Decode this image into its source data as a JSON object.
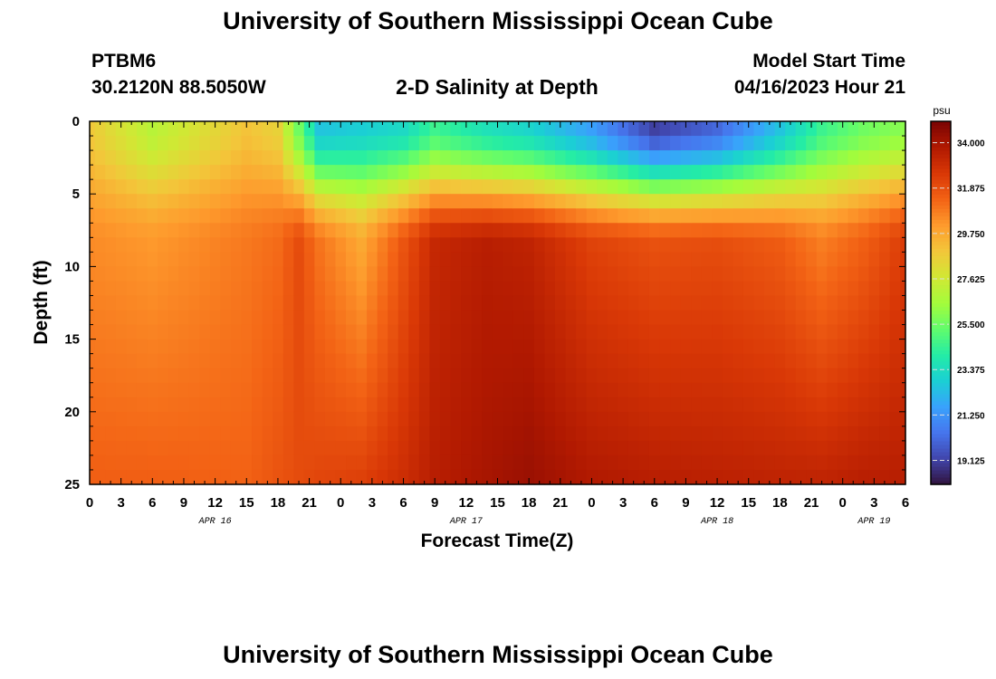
{
  "header": {
    "title": "University of Southern Mississippi Ocean Cube",
    "station_id": "PTBM6",
    "station_coords": "30.2120N  88.5050W",
    "model_start_label": "Model Start Time",
    "model_start_value": "04/16/2023 Hour 21"
  },
  "footer": {
    "title": "University of Southern Mississippi Ocean Cube"
  },
  "chart_data": {
    "type": "heatmap",
    "title": "2-D Salinity at Depth",
    "xlabel": "Forecast Time(Z)",
    "ylabel": "Depth (ft)",
    "colorbar_unit": "psu",
    "x_range_hours_from_apr16_00z": [
      0,
      78
    ],
    "y_range_ft": [
      0,
      25
    ],
    "color_range_psu": [
      18,
      35
    ],
    "x_tick_labels": [
      "0",
      "3",
      "6",
      "9",
      "12",
      "15",
      "18",
      "21",
      "0",
      "3",
      "6",
      "9",
      "12",
      "15",
      "18",
      "21",
      "0",
      "3",
      "6",
      "9",
      "12",
      "15",
      "18",
      "21",
      "0",
      "3",
      "6"
    ],
    "y_tick_labels": [
      "0",
      "5",
      "10",
      "15",
      "20",
      "25"
    ],
    "date_labels": [
      {
        "label": "APR 16",
        "hour": 12
      },
      {
        "label": "APR 17",
        "hour": 36
      },
      {
        "label": "APR 18",
        "hour": 60
      },
      {
        "label": "APR 19",
        "hour": 75
      }
    ],
    "colorbar_ticks": [
      "34.000",
      "31.875",
      "29.750",
      "27.625",
      "25.500",
      "23.375",
      "21.250",
      "19.125"
    ],
    "colorbar_tick_values": [
      34.0,
      31.875,
      29.75,
      27.625,
      25.5,
      23.375,
      21.25,
      19.125
    ],
    "grid_resolution": {
      "time_steps": 79,
      "depth_levels": 25
    },
    "profile_columns": [
      {
        "hour": 0,
        "surface": 28.8,
        "mid": 30.5,
        "bottom": 31.5
      },
      {
        "hour": 6,
        "surface": 27.0,
        "mid": 30.2,
        "bottom": 31.5
      },
      {
        "hour": 15,
        "surface": 29.0,
        "mid": 30.9,
        "bottom": 31.4
      },
      {
        "hour": 18,
        "surface": 28.5,
        "mid": 31.2,
        "bottom": 31.8
      },
      {
        "hour": 20,
        "surface": 25.5,
        "mid": 32.0,
        "bottom": 32.0
      },
      {
        "hour": 22,
        "surface": 22.5,
        "mid": 31.0,
        "bottom": 32.2
      },
      {
        "hour": 26,
        "surface": 22.8,
        "mid": 29.8,
        "bottom": 32.4
      },
      {
        "hour": 30,
        "surface": 23.2,
        "mid": 31.8,
        "bottom": 33.0
      },
      {
        "hour": 33,
        "surface": 24.5,
        "mid": 33.2,
        "bottom": 33.6
      },
      {
        "hour": 38,
        "surface": 23.5,
        "mid": 33.6,
        "bottom": 34.0
      },
      {
        "hour": 42,
        "surface": 23.0,
        "mid": 33.4,
        "bottom": 34.3
      },
      {
        "hour": 48,
        "surface": 21.5,
        "mid": 32.3,
        "bottom": 33.8
      },
      {
        "hour": 54,
        "surface": 19.0,
        "mid": 31.9,
        "bottom": 33.6
      },
      {
        "hour": 60,
        "surface": 20.0,
        "mid": 32.0,
        "bottom": 33.5
      },
      {
        "hour": 66,
        "surface": 22.5,
        "mid": 31.6,
        "bottom": 33.4
      },
      {
        "hour": 70,
        "surface": 24.5,
        "mid": 30.8,
        "bottom": 33.4
      },
      {
        "hour": 74,
        "surface": 25.5,
        "mid": 31.5,
        "bottom": 33.6
      },
      {
        "hour": 78,
        "surface": 26.0,
        "mid": 32.5,
        "bottom": 33.6
      }
    ],
    "colors": {
      "frame": "#000000",
      "colormap": [
        "#30123b",
        "#4145ab",
        "#4675ed",
        "#39a2fc",
        "#1bcfd4",
        "#24eca6",
        "#61fc6c",
        "#a4fc3b",
        "#d1e834",
        "#f3c63a",
        "#fe9b2d",
        "#f36315",
        "#d93806",
        "#b11901",
        "#7a0403"
      ]
    }
  }
}
